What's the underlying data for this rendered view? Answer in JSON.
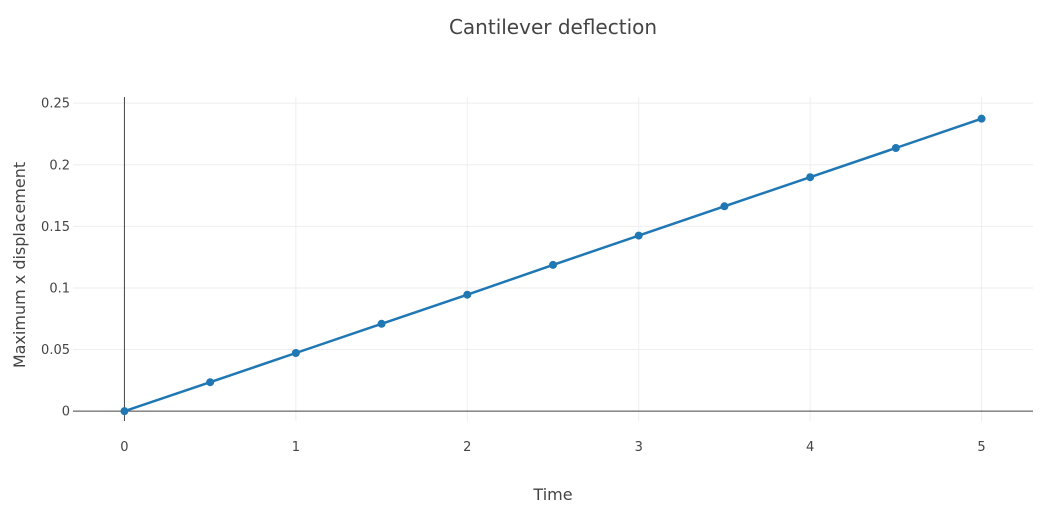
{
  "chart_data": {
    "type": "line",
    "title": "Cantilever deflection",
    "xlabel": "Time",
    "ylabel": "Maximum x displacement",
    "xlim": [
      -0.3,
      5.3
    ],
    "ylim": [
      -0.008,
      0.255
    ],
    "x_ticks": [
      0,
      1,
      2,
      3,
      4,
      5
    ],
    "x_tick_labels": [
      "0",
      "1",
      "2",
      "3",
      "4",
      "5"
    ],
    "y_ticks": [
      0,
      0.05,
      0.1,
      0.15,
      0.2,
      0.25
    ],
    "y_tick_labels": [
      "0",
      "0.05",
      "0.1",
      "0.15",
      "0.2",
      "0.25"
    ],
    "grid": true,
    "line_color": "#1f77b4",
    "series": [
      {
        "x": [
          0,
          0.5,
          1,
          1.5,
          2,
          2.5,
          3,
          3.5,
          4,
          4.5,
          5
        ],
        "y": [
          0,
          0.0235,
          0.0472,
          0.0709,
          0.0945,
          0.1187,
          0.1425,
          0.1663,
          0.1899,
          0.2136,
          0.2374
        ]
      }
    ]
  }
}
